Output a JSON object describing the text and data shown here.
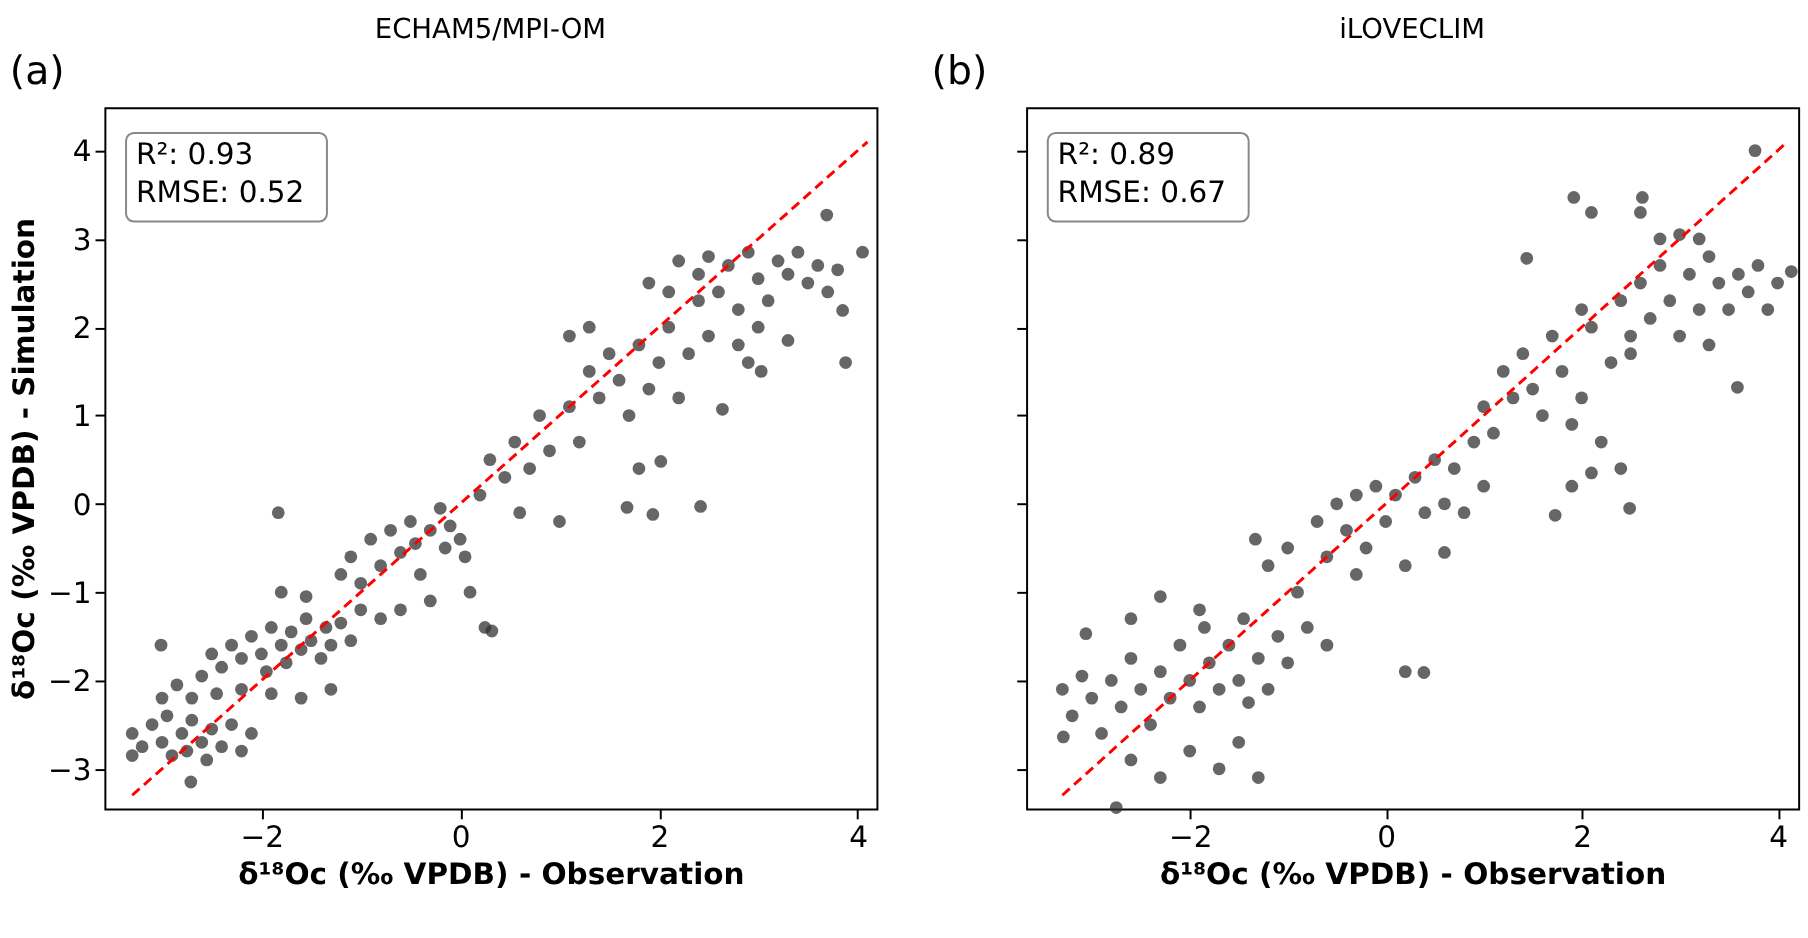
{
  "chart_data": [
    {
      "type": "scatter",
      "title": "ECHAM5/MPI-OM",
      "xlabel": "δ¹⁸Oc (‰ VPDB) - Observation",
      "ylabel": "δ¹⁸Oc (‰ VPDB) - Simulation",
      "annotations": [
        "(a)",
        "R²: 0.93\nRMSE: 0.52"
      ],
      "xlim": [
        -3.58,
        4.19
      ],
      "ylim": [
        -3.45,
        4.49
      ],
      "xticks": [
        -2,
        0,
        2,
        4
      ],
      "yticks": [
        -3,
        -2,
        -1,
        0,
        1,
        2,
        3,
        4
      ],
      "grid": false,
      "series": [
        {
          "marker": "circle",
          "color": "#333333",
          "x": [
            -3.3,
            -3.3,
            -3.2,
            -3.1,
            -3.0,
            -2.95,
            -2.9,
            -2.8,
            -2.75,
            -2.7,
            -2.6,
            -2.55,
            -2.5,
            -2.4,
            -2.3,
            -2.2,
            -2.1,
            -3.0,
            -2.85,
            -2.7,
            -2.6,
            -2.45,
            -2.71,
            -3.01,
            -2.5,
            -2.4,
            -2.3,
            -2.2,
            -2.1,
            -2.0,
            -1.95,
            -1.9,
            -1.8,
            -1.75,
            -1.7,
            -1.6,
            -1.55,
            -1.5,
            -1.4,
            -1.35,
            -1.3,
            -1.2,
            -1.1,
            -1.0,
            -2.2,
            -1.9,
            -1.6,
            -1.3,
            -1.8,
            -1.83,
            -1.55,
            -1.2,
            -1.1,
            -1.0,
            -0.9,
            -0.8,
            -0.7,
            -0.6,
            -0.5,
            -0.45,
            -0.4,
            -0.3,
            -0.2,
            -0.15,
            -0.1,
            0.0,
            0.05,
            -0.6,
            -0.3,
            0.1,
            0.32,
            0.25,
            -0.8,
            0.2,
            0.3,
            0.45,
            0.55,
            0.6,
            0.7,
            0.8,
            0.9,
            1.0,
            1.1,
            1.2,
            1.3,
            1.4,
            1.5,
            1.6,
            1.7,
            1.8,
            1.9,
            2.0,
            2.1,
            2.2,
            2.3,
            2.4,
            2.02,
            1.68,
            1.94,
            2.42,
            1.8,
            2.64,
            1.3,
            1.1,
            1.9,
            2.1,
            2.2,
            2.4,
            2.5,
            2.6,
            2.7,
            2.8,
            2.9,
            3.0,
            3.1,
            3.2,
            3.3,
            3.4,
            3.5,
            3.6,
            3.7,
            3.8,
            2.8,
            3.0,
            3.3,
            3.69,
            4.05,
            3.88,
            3.03,
            3.85,
            2.5,
            2.9
          ],
          "values": [
            -2.6,
            -2.85,
            -2.75,
            -2.5,
            -2.7,
            -2.4,
            -2.85,
            -2.6,
            -2.8,
            -2.45,
            -2.7,
            -2.9,
            -2.55,
            -2.75,
            -2.5,
            -2.8,
            -2.6,
            -2.2,
            -2.05,
            -2.2,
            -1.95,
            -2.15,
            -3.15,
            -1.6,
            -1.7,
            -1.85,
            -1.6,
            -1.75,
            -1.5,
            -1.7,
            -1.9,
            -1.4,
            -1.6,
            -1.8,
            -1.45,
            -1.65,
            -1.3,
            -1.55,
            -1.75,
            -1.4,
            -1.6,
            -1.35,
            -1.55,
            -1.2,
            -2.1,
            -2.15,
            -2.2,
            -2.1,
            -1.0,
            -0.1,
            -1.05,
            -0.8,
            -0.6,
            -0.9,
            -0.4,
            -0.7,
            -0.3,
            -0.55,
            -0.2,
            -0.45,
            -0.8,
            -0.3,
            -0.05,
            -0.5,
            -0.25,
            -0.4,
            -0.6,
            -1.2,
            -1.1,
            -1.0,
            -1.44,
            -1.4,
            -1.3,
            0.1,
            0.5,
            0.3,
            0.7,
            -0.1,
            0.4,
            1.0,
            0.6,
            -0.2,
            1.1,
            0.7,
            1.5,
            1.2,
            1.7,
            1.4,
            1.0,
            1.8,
            1.3,
            1.6,
            2.0,
            1.2,
            1.7,
            2.3,
            0.48,
            -0.04,
            -0.12,
            -0.03,
            0.4,
            1.07,
            2.0,
            1.9,
            2.5,
            2.4,
            2.75,
            2.6,
            2.8,
            2.4,
            2.7,
            2.2,
            2.85,
            2.55,
            2.3,
            2.75,
            2.6,
            2.85,
            2.5,
            2.7,
            2.4,
            2.65,
            1.8,
            2.0,
            1.85,
            3.27,
            2.85,
            1.6,
            1.5,
            2.19,
            1.9,
            1.6
          ]
        },
        {
          "type": "line",
          "color": "#ff0000",
          "line_style": "dashed",
          "x": [
            -3.3,
            4.1
          ],
          "values": [
            -3.3,
            4.1
          ]
        }
      ]
    },
    {
      "type": "scatter",
      "title": "iLOVECLIM",
      "xlabel": "δ¹⁸Oc (‰ VPDB) - Observation",
      "annotations": [
        "(b)",
        "R²: 0.89\nRMSE: 0.67"
      ],
      "xlim": [
        -3.67,
        4.21
      ],
      "ylim": [
        -3.45,
        4.49
      ],
      "xticks": [
        -2,
        0,
        2,
        4
      ],
      "yticks": [
        -3,
        -2,
        -1,
        0,
        1,
        2,
        3,
        4
      ],
      "tick_labels": "x",
      "grid": false,
      "series": [
        {
          "marker": "circle",
          "color": "#333333",
          "x": [
            -3.3,
            -3.2,
            -3.1,
            -3.0,
            -2.9,
            -2.8,
            -2.7,
            -2.6,
            -2.5,
            -2.4,
            -2.3,
            -2.2,
            -2.1,
            -2.0,
            -1.9,
            -1.85,
            -1.8,
            -1.7,
            -1.6,
            -1.5,
            -1.45,
            -1.4,
            -1.3,
            -1.2,
            -1.1,
            -2.6,
            -2.3,
            -2.0,
            -1.7,
            -1.5,
            -1.3,
            -2.75,
            -3.29,
            -3.06,
            -2.3,
            -1.0,
            -0.8,
            -0.6,
            0.39,
            0.2,
            -2.6,
            -1.9,
            -1.33,
            -1.2,
            -1.0,
            -0.9,
            -0.7,
            -0.6,
            -0.5,
            -0.4,
            -0.3,
            -0.2,
            -0.1,
            0.0,
            0.1,
            0.2,
            0.3,
            0.4,
            0.5,
            0.6,
            0.7,
            0.8,
            0.9,
            1.0,
            -0.3,
            0.6,
            1.0,
            1.1,
            1.2,
            1.3,
            1.4,
            1.5,
            1.6,
            1.7,
            1.8,
            1.9,
            2.0,
            2.1,
            2.2,
            2.3,
            2.4,
            2.5,
            1.73,
            2.49,
            1.9,
            2.1,
            1.44,
            2.0,
            2.4,
            2.5,
            2.6,
            2.7,
            2.8,
            2.9,
            3.0,
            3.1,
            3.2,
            3.3,
            3.4,
            3.5,
            3.6,
            3.7,
            3.8,
            3.9,
            4.0,
            2.6,
            2.8,
            3.0,
            3.2,
            1.92,
            2.62,
            2.1,
            3.77,
            4.14,
            3.59,
            3.3
          ],
          "values": [
            -2.1,
            -2.4,
            -1.95,
            -2.2,
            -2.6,
            -2.0,
            -2.3,
            -1.75,
            -2.1,
            -2.5,
            -1.9,
            -2.2,
            -1.6,
            -2.0,
            -2.3,
            -1.4,
            -1.8,
            -2.1,
            -1.6,
            -2.0,
            -1.3,
            -2.25,
            -1.75,
            -2.1,
            -1.5,
            -2.9,
            -3.1,
            -2.8,
            -3.0,
            -2.7,
            -3.1,
            -3.44,
            -2.64,
            -1.47,
            -1.05,
            -1.8,
            -1.4,
            -1.6,
            -1.91,
            -1.9,
            -1.3,
            -1.2,
            -0.4,
            -0.7,
            -0.5,
            -1.0,
            -0.2,
            -0.6,
            0.0,
            -0.3,
            0.1,
            -0.5,
            0.2,
            -0.2,
            0.1,
            -0.7,
            0.3,
            -0.1,
            0.5,
            0.0,
            0.4,
            -0.1,
            0.7,
            0.2,
            -0.8,
            -0.55,
            1.1,
            0.8,
            1.5,
            1.2,
            1.7,
            1.3,
            1.0,
            1.9,
            1.5,
            0.9,
            1.2,
            2.0,
            0.7,
            1.6,
            0.4,
            1.9,
            -0.13,
            -0.05,
            0.2,
            0.35,
            2.78,
            2.2,
            2.3,
            1.7,
            2.5,
            2.1,
            2.7,
            2.3,
            1.9,
            2.6,
            2.2,
            2.8,
            2.5,
            2.2,
            2.6,
            2.4,
            2.7,
            2.2,
            2.5,
            3.3,
            3.0,
            3.05,
            3.0,
            3.47,
            3.47,
            3.3,
            4.0,
            2.63,
            1.32,
            1.8
          ]
        },
        {
          "type": "line",
          "color": "#ff0000",
          "line_style": "dashed",
          "x": [
            -3.3,
            4.1
          ],
          "values": [
            -3.3,
            4.1
          ]
        }
      ]
    }
  ]
}
